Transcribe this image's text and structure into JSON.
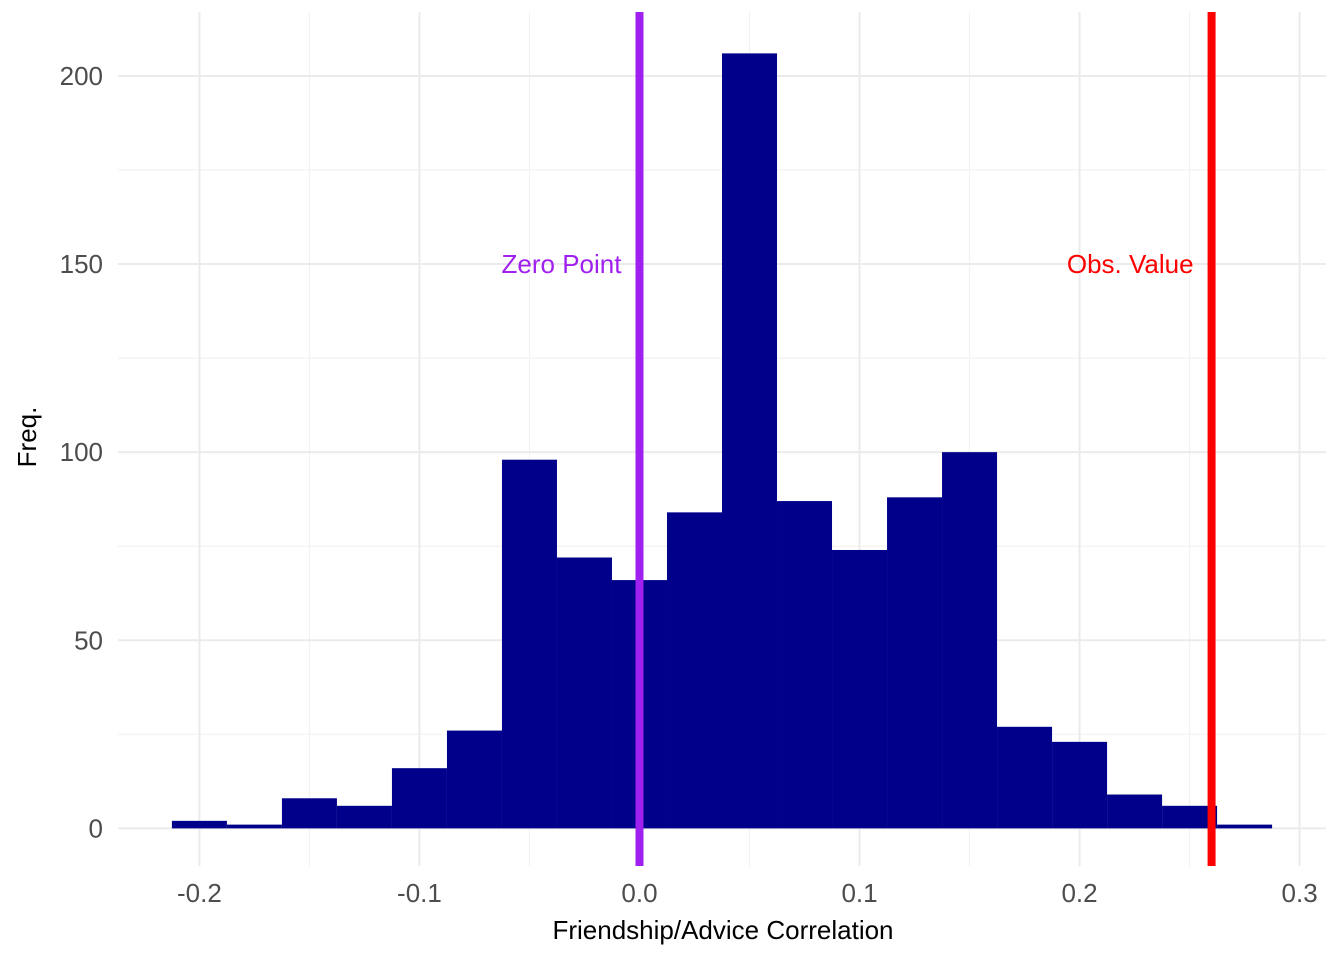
{
  "chart_data": {
    "type": "bar",
    "subtype": "histogram",
    "xlabel": "Friendship/Advice Correlation",
    "ylabel": "Freq.",
    "xlim": [
      -0.237,
      0.312
    ],
    "ylim": [
      -10,
      217
    ],
    "x_ticks": [
      -0.2,
      -0.1,
      0.0,
      0.1,
      0.2,
      0.3
    ],
    "x_tick_labels": [
      "-0.2",
      "-0.1",
      "0.0",
      "0.1",
      "0.2",
      "0.3"
    ],
    "y_ticks": [
      0,
      50,
      100,
      150,
      200
    ],
    "y_tick_labels": [
      "0",
      "50",
      "100",
      "150",
      "200"
    ],
    "grid": true,
    "bar_color": "#00008B",
    "bins": [
      {
        "x0": -0.2125,
        "x1": -0.1875,
        "count": 2
      },
      {
        "x0": -0.1875,
        "x1": -0.1625,
        "count": 1
      },
      {
        "x0": -0.1625,
        "x1": -0.1375,
        "count": 8
      },
      {
        "x0": -0.1375,
        "x1": -0.1125,
        "count": 6
      },
      {
        "x0": -0.1125,
        "x1": -0.0875,
        "count": 16
      },
      {
        "x0": -0.0875,
        "x1": -0.0625,
        "count": 26
      },
      {
        "x0": -0.0625,
        "x1": -0.0375,
        "count": 98
      },
      {
        "x0": -0.0375,
        "x1": -0.0125,
        "count": 72
      },
      {
        "x0": -0.0125,
        "x1": 0.0125,
        "count": 66
      },
      {
        "x0": 0.0125,
        "x1": 0.0375,
        "count": 84
      },
      {
        "x0": 0.0375,
        "x1": 0.0625,
        "count": 206
      },
      {
        "x0": 0.0625,
        "x1": 0.0875,
        "count": 87
      },
      {
        "x0": 0.0875,
        "x1": 0.1125,
        "count": 74
      },
      {
        "x0": 0.1125,
        "x1": 0.1375,
        "count": 88
      },
      {
        "x0": 0.1375,
        "x1": 0.1625,
        "count": 100
      },
      {
        "x0": 0.1625,
        "x1": 0.1875,
        "count": 27
      },
      {
        "x0": 0.1875,
        "x1": 0.2125,
        "count": 23
      },
      {
        "x0": 0.2125,
        "x1": 0.2375,
        "count": 9
      },
      {
        "x0": 0.2375,
        "x1": 0.2625,
        "count": 6
      },
      {
        "x0": 0.2625,
        "x1": 0.2875,
        "count": 1
      }
    ],
    "vlines": [
      {
        "x": 0.0,
        "color": "#A020F0",
        "label": "Zero Point",
        "label_y": 150
      },
      {
        "x": 0.26,
        "color": "#FF0000",
        "label": "Obs. Value",
        "label_y": 150
      }
    ]
  }
}
